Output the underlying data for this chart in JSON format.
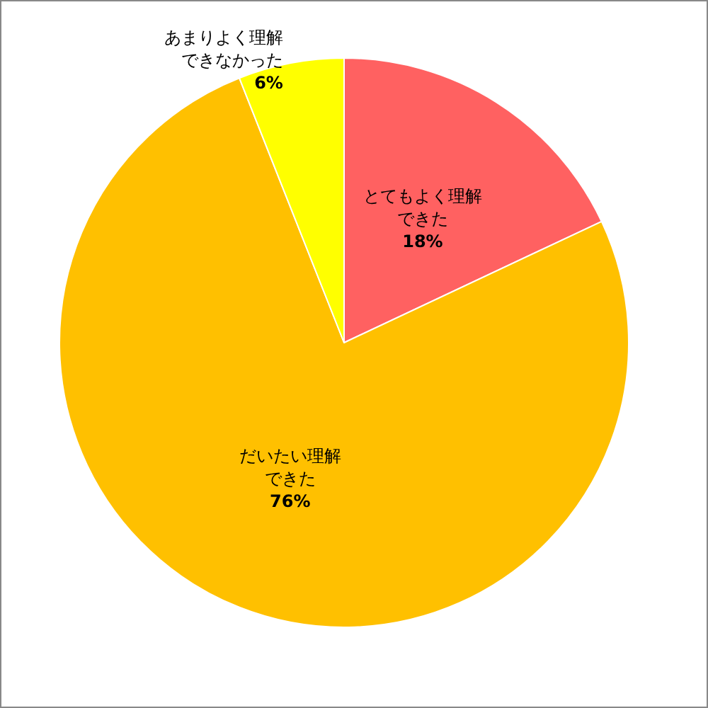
{
  "chart_data": {
    "type": "pie",
    "categories": [
      "とてもよく理解できた",
      "だいたい理解できた",
      "あまりよく理解できなかった"
    ],
    "values": [
      18,
      76,
      6
    ],
    "colors": [
      "#ff6161",
      "#ffc000",
      "#ffff00"
    ],
    "value_labels": [
      "18%",
      "76%",
      "6%"
    ],
    "legend": false
  }
}
